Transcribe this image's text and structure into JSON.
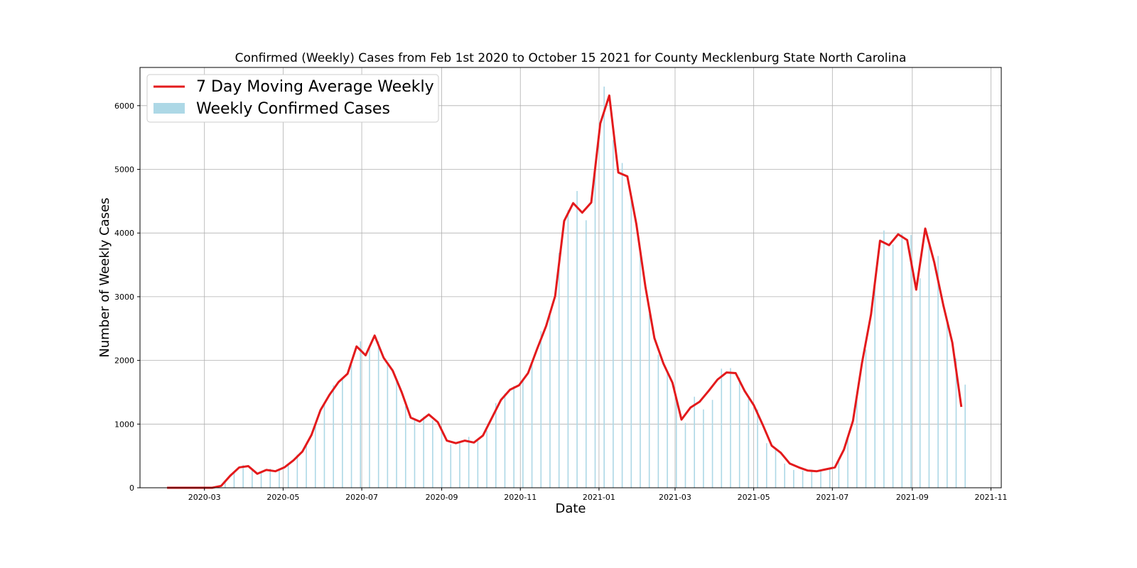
{
  "chart_data": {
    "type": "bar",
    "title": "Confirmed (Weekly) Cases from Feb 1st 2020 to October 15 2021 for County Mecklenburg State North Carolina",
    "xlabel": "Date",
    "ylabel": "Number of Weekly Cases",
    "ylim": [
      0,
      6600
    ],
    "xlim": [
      "2020-01-11",
      "2021-11-09"
    ],
    "y_ticks": [
      0,
      1000,
      2000,
      3000,
      4000,
      5000,
      6000
    ],
    "x_ticks": [
      "2020-03",
      "2020-05",
      "2020-07",
      "2020-09",
      "2020-11",
      "2021-01",
      "2021-03",
      "2021-05",
      "2021-07",
      "2021-09",
      "2021-11"
    ],
    "grid": true,
    "legend_position": "top-left",
    "colors": {
      "line": "#e31a1c",
      "bar": "#add8e6"
    },
    "series": [
      {
        "name": "7 Day Moving Average Weekly",
        "kind": "line",
        "x": [
          "2020-02-01",
          "2020-02-08",
          "2020-02-15",
          "2020-02-22",
          "2020-02-29",
          "2020-03-07",
          "2020-03-14",
          "2020-03-21",
          "2020-03-28",
          "2020-04-04",
          "2020-04-11",
          "2020-04-18",
          "2020-04-25",
          "2020-05-02",
          "2020-05-09",
          "2020-05-16",
          "2020-05-23",
          "2020-05-30",
          "2020-06-06",
          "2020-06-13",
          "2020-06-20",
          "2020-06-27",
          "2020-07-04",
          "2020-07-11",
          "2020-07-18",
          "2020-07-25",
          "2020-08-01",
          "2020-08-08",
          "2020-08-15",
          "2020-08-22",
          "2020-08-29",
          "2020-09-05",
          "2020-09-12",
          "2020-09-19",
          "2020-09-26",
          "2020-10-03",
          "2020-10-10",
          "2020-10-17",
          "2020-10-24",
          "2020-10-31",
          "2020-11-07",
          "2020-11-14",
          "2020-11-21",
          "2020-11-28",
          "2020-12-05",
          "2020-12-12",
          "2020-12-19",
          "2020-12-26",
          "2021-01-02",
          "2021-01-09",
          "2021-01-16",
          "2021-01-23",
          "2021-01-30",
          "2021-02-06",
          "2021-02-13",
          "2021-02-20",
          "2021-02-27",
          "2021-03-06",
          "2021-03-13",
          "2021-03-20",
          "2021-03-27",
          "2021-04-03",
          "2021-04-10",
          "2021-04-17",
          "2021-04-24",
          "2021-05-01",
          "2021-05-08",
          "2021-05-15",
          "2021-05-22",
          "2021-05-29",
          "2021-06-05",
          "2021-06-12",
          "2021-06-19",
          "2021-06-26",
          "2021-07-03",
          "2021-07-10",
          "2021-07-17",
          "2021-07-24",
          "2021-07-31",
          "2021-08-07",
          "2021-08-14",
          "2021-08-21",
          "2021-08-28",
          "2021-09-04",
          "2021-09-11",
          "2021-09-18",
          "2021-09-25",
          "2021-10-02",
          "2021-10-09"
        ],
        "values": [
          0,
          0,
          0,
          0,
          0,
          0,
          30,
          190,
          320,
          340,
          220,
          280,
          260,
          320,
          430,
          570,
          830,
          1220,
          1460,
          1660,
          1790,
          2220,
          2080,
          2390,
          2040,
          1840,
          1500,
          1100,
          1040,
          1150,
          1030,
          740,
          700,
          740,
          710,
          820,
          1100,
          1380,
          1540,
          1610,
          1800,
          2180,
          2540,
          3010,
          4190,
          4470,
          4320,
          4480,
          5720,
          6160,
          4950,
          4890,
          4140,
          3160,
          2350,
          1950,
          1650,
          1070,
          1260,
          1350,
          1520,
          1700,
          1810,
          1800,
          1520,
          1300,
          990,
          660,
          550,
          380,
          320,
          270,
          260,
          290,
          320,
          600,
          1050,
          1960,
          2720,
          3880,
          3810,
          3980,
          3890,
          3110,
          4070,
          3540,
          2870,
          2280,
          1270
        ]
      },
      {
        "name": "Weekly Confirmed Cases",
        "kind": "bar",
        "x": [
          "2020-02-04",
          "2020-02-11",
          "2020-02-18",
          "2020-02-25",
          "2020-03-03",
          "2020-03-10",
          "2020-03-17",
          "2020-03-24",
          "2020-03-31",
          "2020-04-07",
          "2020-04-14",
          "2020-04-21",
          "2020-04-28",
          "2020-05-05",
          "2020-05-12",
          "2020-05-19",
          "2020-05-26",
          "2020-06-02",
          "2020-06-09",
          "2020-06-16",
          "2020-06-23",
          "2020-06-30",
          "2020-07-07",
          "2020-07-14",
          "2020-07-21",
          "2020-07-28",
          "2020-08-04",
          "2020-08-11",
          "2020-08-18",
          "2020-08-25",
          "2020-09-01",
          "2020-09-08",
          "2020-09-15",
          "2020-09-22",
          "2020-09-29",
          "2020-10-06",
          "2020-10-13",
          "2020-10-20",
          "2020-10-27",
          "2020-11-03",
          "2020-11-10",
          "2020-11-17",
          "2020-11-24",
          "2020-12-01",
          "2020-12-08",
          "2020-12-15",
          "2020-12-22",
          "2020-12-29",
          "2021-01-05",
          "2021-01-12",
          "2021-01-19",
          "2021-01-26",
          "2021-02-02",
          "2021-02-09",
          "2021-02-16",
          "2021-02-23",
          "2021-03-02",
          "2021-03-09",
          "2021-03-16",
          "2021-03-23",
          "2021-03-30",
          "2021-04-06",
          "2021-04-13",
          "2021-04-20",
          "2021-04-27",
          "2021-05-04",
          "2021-05-11",
          "2021-05-18",
          "2021-05-25",
          "2021-06-01",
          "2021-06-08",
          "2021-06-15",
          "2021-06-22",
          "2021-06-29",
          "2021-07-06",
          "2021-07-13",
          "2021-07-20",
          "2021-07-27",
          "2021-08-03",
          "2021-08-10",
          "2021-08-17",
          "2021-08-24",
          "2021-08-31",
          "2021-09-07",
          "2021-09-14",
          "2021-09-21",
          "2021-09-28",
          "2021-10-05",
          "2021-10-12"
        ],
        "values": [
          0,
          0,
          0,
          0,
          0,
          10,
          90,
          250,
          360,
          290,
          240,
          300,
          270,
          380,
          520,
          660,
          1030,
          1330,
          1610,
          1730,
          1930,
          2300,
          2240,
          2300,
          1930,
          1700,
          1280,
          1060,
          1120,
          1060,
          880,
          680,
          720,
          800,
          740,
          900,
          1330,
          1480,
          1600,
          1700,
          1980,
          2460,
          2700,
          3690,
          4360,
          4660,
          4200,
          5050,
          6300,
          5460,
          5100,
          4520,
          3680,
          2730,
          2090,
          1800,
          1440,
          1020,
          1430,
          1230,
          1380,
          1870,
          1880,
          1730,
          1400,
          1230,
          700,
          600,
          380,
          280,
          270,
          250,
          270,
          300,
          430,
          780,
          1400,
          2170,
          3170,
          4040,
          3820,
          3990,
          3970,
          3290,
          3850,
          3640,
          2620,
          2030,
          1620
        ]
      }
    ]
  }
}
